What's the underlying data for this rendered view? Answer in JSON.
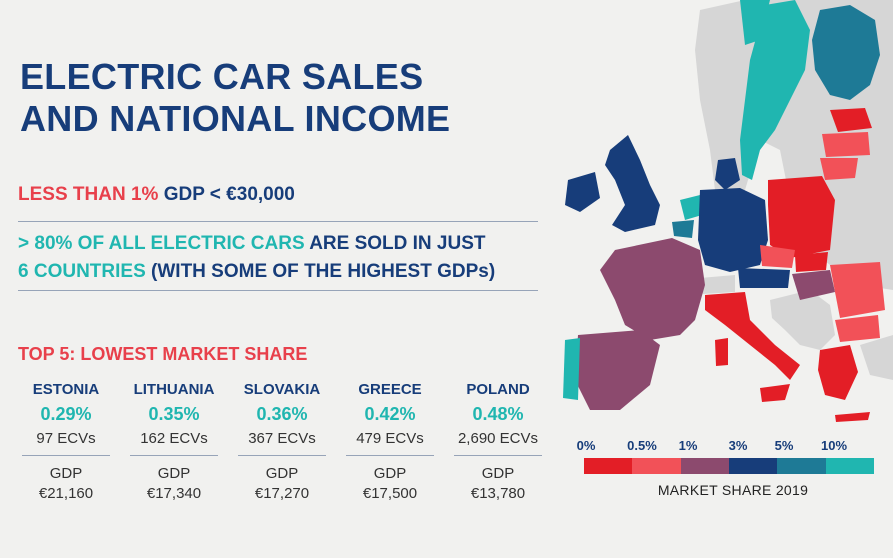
{
  "title": {
    "line1": "ELECTRIC CAR SALES",
    "line2": "AND NATIONAL INCOME"
  },
  "gdp_note": {
    "red_part": "LESS THAN 1%",
    "navy_part": "GDP < €30,000"
  },
  "sold_note": {
    "teal_1": "> 80% OF ALL ELECTRIC CARS",
    "navy_1": "ARE SOLD IN JUST",
    "teal_2": "6 COUNTRIES",
    "navy_2": "(WITH SOME OF THE HIGHEST GDPs)"
  },
  "top5": {
    "heading": "TOP 5: LOWEST MARKET SHARE",
    "countries": [
      {
        "name": "ESTONIA",
        "share": "0.29%",
        "ecvs": "97 ECVs",
        "gdp_label": "GDP",
        "gdp": "€21,160"
      },
      {
        "name": "LITHUANIA",
        "share": "0.35%",
        "ecvs": "162 ECVs",
        "gdp_label": "GDP",
        "gdp": "€17,340"
      },
      {
        "name": "SLOVAKIA",
        "share": "0.36%",
        "ecvs": "367 ECVs",
        "gdp_label": "GDP",
        "gdp": "€17,270"
      },
      {
        "name": "GREECE",
        "share": "0.42%",
        "ecvs": "479 ECVs",
        "gdp_label": "GDP",
        "gdp": "€17,500"
      },
      {
        "name": "POLAND",
        "share": "0.48%",
        "ecvs": "2,690 ECVs",
        "gdp_label": "GDP",
        "gdp": "€13,780"
      }
    ]
  },
  "legend": {
    "ticks": [
      "0%",
      "0.5%",
      "1%",
      "3%",
      "5%",
      "10%"
    ],
    "colors": [
      "#e31e26",
      "#f25158",
      "#8c4a6e",
      "#173d7a",
      "#1e7a96",
      "#20b6b0"
    ],
    "title": "MARKET SHARE 2019"
  },
  "map_colors": {
    "no_data": "#d6d6d6",
    "red": "#e31e26",
    "light_red": "#f25158",
    "purple": "#8c4a6e",
    "navy": "#173d7a",
    "blue_teal": "#1e7a96",
    "teal": "#20b6b0"
  }
}
